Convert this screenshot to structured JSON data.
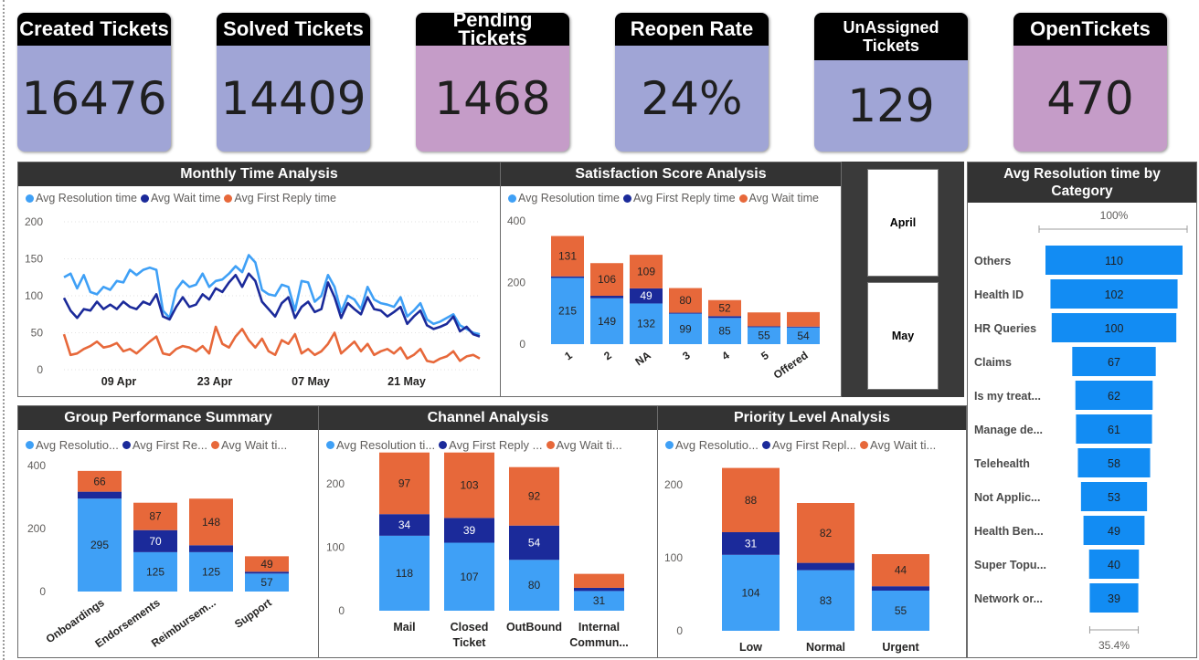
{
  "colors": {
    "light_blue": "#3fa0f6",
    "dark_blue": "#1b2a9a",
    "orange": "#e7683a",
    "kpi_blue": "#a0a5d6",
    "kpi_purple": "#c59cc8",
    "funnel_blue": "#128cf3"
  },
  "kpis": [
    {
      "title": "Created Tickets",
      "value": "16476",
      "color": "#a0a5d6"
    },
    {
      "title": "Solved Tickets",
      "value": "14409",
      "color": "#a0a5d6"
    },
    {
      "title": "Pending Tickets",
      "value": "1468",
      "color": "#c59cc8"
    },
    {
      "title": "Reopen Rate",
      "value": "24%",
      "color": "#a0a5d6"
    },
    {
      "title": "UnAssigned Tickets",
      "value": "129",
      "color": "#a0a5d6"
    },
    {
      "title": "OpenTickets",
      "value": "470",
      "color": "#c59cc8"
    }
  ],
  "monthly": {
    "title": "Monthly Time Analysis",
    "legend": [
      "Avg Resolution time",
      "Avg Wait time",
      "Avg First Reply time"
    ]
  },
  "satisfaction": {
    "title": "Satisfaction Score Analysis",
    "legend": [
      "Avg Resolution time",
      "Avg First Reply time",
      "Avg Wait time"
    ]
  },
  "slicer": {
    "items": [
      "April",
      "May"
    ]
  },
  "funnel": {
    "title": "Avg Resolution time by Category",
    "top_label": "100%",
    "bottom_label": "35.4%"
  },
  "group": {
    "title": "Group Performance Summary",
    "legend": [
      "Avg Resolutio...",
      "Avg First Re...",
      "Avg Wait ti..."
    ]
  },
  "channel": {
    "title": "Channel Analysis",
    "legend": [
      "Avg Resolution ti...",
      "Avg First Reply ...",
      "Avg Wait ti..."
    ]
  },
  "priority": {
    "title": "Priority Level Analysis",
    "legend": [
      "Avg Resolutio...",
      "Avg First Repl...",
      "Avg Wait ti..."
    ]
  },
  "chart_data": [
    {
      "id": "monthly",
      "type": "line",
      "title": "Monthly Time Analysis",
      "x_ticks": [
        "09 Apr",
        "23 Apr",
        "07 May",
        "21 May"
      ],
      "ylim": [
        0,
        200
      ],
      "y_ticks": [
        0,
        50,
        100,
        150,
        200
      ],
      "series": [
        {
          "name": "Avg Resolution time",
          "color": "#3fa0f6",
          "values": [
            125,
            130,
            110,
            128,
            105,
            102,
            112,
            108,
            120,
            118,
            135,
            128,
            135,
            138,
            135,
            80,
            70,
            108,
            120,
            112,
            115,
            130,
            112,
            120,
            122,
            130,
            140,
            132,
            155,
            145,
            108,
            102,
            100,
            115,
            112,
            80,
            120,
            118,
            92,
            100,
            128,
            112,
            78,
            100,
            95,
            82,
            112,
            95,
            90,
            88,
            85,
            98,
            72,
            80,
            90,
            68,
            62,
            65,
            70,
            75,
            60,
            55,
            50,
            48
          ]
        },
        {
          "name": "Avg Wait time",
          "color": "#1b2a9a",
          "values": [
            97,
            80,
            70,
            82,
            80,
            92,
            82,
            88,
            82,
            92,
            85,
            82,
            92,
            88,
            102,
            72,
            68,
            85,
            98,
            85,
            88,
            102,
            95,
            110,
            105,
            118,
            128,
            112,
            130,
            120,
            92,
            82,
            72,
            90,
            98,
            70,
            85,
            92,
            78,
            82,
            118,
            98,
            70,
            90,
            82,
            75,
            98,
            82,
            80,
            72,
            78,
            85,
            62,
            72,
            80,
            60,
            55,
            58,
            62,
            72,
            52,
            58,
            48,
            45
          ]
        },
        {
          "name": "Avg First Reply time",
          "color": "#e7683a",
          "values": [
            48,
            20,
            22,
            28,
            32,
            38,
            30,
            32,
            36,
            25,
            28,
            22,
            30,
            38,
            45,
            22,
            20,
            28,
            32,
            30,
            25,
            32,
            22,
            58,
            35,
            30,
            45,
            55,
            40,
            30,
            42,
            25,
            20,
            40,
            35,
            48,
            22,
            28,
            20,
            25,
            35,
            50,
            22,
            30,
            38,
            25,
            35,
            20,
            25,
            28,
            22,
            30,
            15,
            20,
            28,
            12,
            10,
            15,
            18,
            25,
            12,
            18,
            20,
            15
          ]
        }
      ]
    },
    {
      "id": "satisfaction",
      "type": "bar",
      "title": "Satisfaction Score Analysis",
      "categories": [
        "1",
        "2",
        "NA",
        "3",
        "4",
        "5",
        "Offered"
      ],
      "ylim": [
        0,
        400
      ],
      "y_ticks": [
        0,
        200,
        400
      ],
      "series": [
        {
          "name": "Avg Resolution time",
          "color": "#3fa0f6",
          "values": [
            215,
            149,
            132,
            99,
            85,
            55,
            54
          ]
        },
        {
          "name": "Avg First Reply time",
          "color": "#1b2a9a",
          "values": [
            5,
            8,
            49,
            3,
            6,
            3,
            3
          ]
        },
        {
          "name": "Avg Wait time",
          "color": "#e7683a",
          "values": [
            131,
            106,
            109,
            80,
            52,
            45,
            47
          ]
        }
      ],
      "labels": [
        [
          "215",
          "",
          "131"
        ],
        [
          "149",
          "",
          "106"
        ],
        [
          "132",
          "49",
          "109"
        ],
        [
          "99",
          "",
          "80"
        ],
        [
          "85",
          "",
          "52"
        ],
        [
          "55",
          "",
          ""
        ],
        [
          "54",
          "",
          ""
        ]
      ]
    },
    {
      "id": "funnel",
      "type": "bar",
      "title": "Avg Resolution time by Category",
      "categories": [
        "Others",
        "Health ID",
        "HR Queries",
        "Claims",
        "Is my treat...",
        "Manage de...",
        "Telehealth",
        "Not Applic...",
        "Health Ben...",
        "Super Topu...",
        "Network or..."
      ],
      "values": [
        110,
        102,
        100,
        67,
        62,
        61,
        58,
        53,
        49,
        40,
        39
      ]
    },
    {
      "id": "group",
      "type": "bar",
      "title": "Group Performance Summary",
      "categories": [
        "Onboardings",
        "Endorsements",
        "Reimbursem...",
        "Support"
      ],
      "ylim": [
        0,
        400
      ],
      "y_ticks": [
        0,
        200,
        400
      ],
      "series": [
        {
          "name": "Avg Resolution time",
          "color": "#3fa0f6",
          "values": [
            295,
            125,
            125,
            57
          ]
        },
        {
          "name": "Avg First Reply time",
          "color": "#1b2a9a",
          "values": [
            22,
            70,
            22,
            6
          ]
        },
        {
          "name": "Avg Wait time",
          "color": "#e7683a",
          "values": [
            66,
            87,
            148,
            49
          ]
        }
      ],
      "labels": [
        [
          "295",
          "",
          "66"
        ],
        [
          "125",
          "70",
          "87"
        ],
        [
          "125",
          "",
          "148"
        ],
        [
          "57",
          "",
          "49"
        ]
      ]
    },
    {
      "id": "channel",
      "type": "bar",
      "title": "Channel Analysis",
      "categories": [
        "Mail",
        "Closed Ticket",
        "OutBound",
        "Internal Commun..."
      ],
      "ylim": [
        0,
        250
      ],
      "y_ticks": [
        0,
        100,
        200
      ],
      "series": [
        {
          "name": "Avg Resolution time",
          "color": "#3fa0f6",
          "values": [
            118,
            107,
            80,
            31
          ]
        },
        {
          "name": "Avg First Reply time",
          "color": "#1b2a9a",
          "values": [
            34,
            39,
            54,
            5
          ]
        },
        {
          "name": "Avg Wait time",
          "color": "#e7683a",
          "values": [
            97,
            103,
            92,
            22
          ]
        }
      ],
      "labels": [
        [
          "118",
          "34",
          "97"
        ],
        [
          "107",
          "39",
          "103"
        ],
        [
          "80",
          "54",
          "92"
        ],
        [
          "31",
          "",
          ""
        ]
      ]
    },
    {
      "id": "priority",
      "type": "bar",
      "title": "Priority Level Analysis",
      "categories": [
        "Low",
        "Normal",
        "Urgent"
      ],
      "ylim": [
        0,
        230
      ],
      "y_ticks": [
        0,
        100,
        200
      ],
      "series": [
        {
          "name": "Avg Resolution time",
          "color": "#3fa0f6",
          "values": [
            104,
            83,
            55
          ]
        },
        {
          "name": "Avg First Reply time",
          "color": "#1b2a9a",
          "values": [
            31,
            10,
            6
          ]
        },
        {
          "name": "Avg Wait time",
          "color": "#e7683a",
          "values": [
            88,
            82,
            44
          ]
        }
      ],
      "labels": [
        [
          "104",
          "31",
          "88"
        ],
        [
          "83",
          "",
          "82"
        ],
        [
          "55",
          "",
          "44"
        ]
      ]
    }
  ]
}
